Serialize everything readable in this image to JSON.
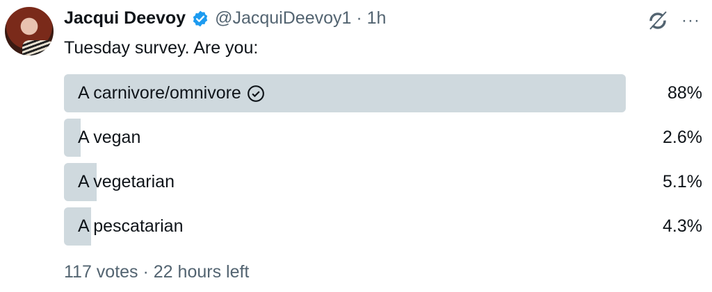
{
  "tweet": {
    "author_name": "Jacqui Deevoy",
    "handle": "@JacquiDeevoy1",
    "separator": " · ",
    "time": "1h",
    "text": "Tuesday survey. Are you:",
    "verified": true
  },
  "icons": {
    "verified": "verified-badge-icon",
    "grok": "grok-icon",
    "more": "more-icon",
    "check": "check-circle-icon"
  },
  "colors": {
    "bar": "#cfd9de",
    "verified": "#1d9bf0",
    "muted": "#536471"
  },
  "poll": {
    "options": [
      {
        "label": "A carnivore/omnivore",
        "percent_label": "88%",
        "percent": 88,
        "winner": true
      },
      {
        "label": "A vegan",
        "percent_label": "2.6%",
        "percent": 2.6,
        "winner": false
      },
      {
        "label": "A vegetarian",
        "percent_label": "5.1%",
        "percent": 5.1,
        "winner": false
      },
      {
        "label": "A pescatarian",
        "percent_label": "4.3%",
        "percent": 4.3,
        "winner": false
      }
    ],
    "votes": "117 votes",
    "separator": " · ",
    "time_left": "22 hours left"
  },
  "more_label": "···"
}
